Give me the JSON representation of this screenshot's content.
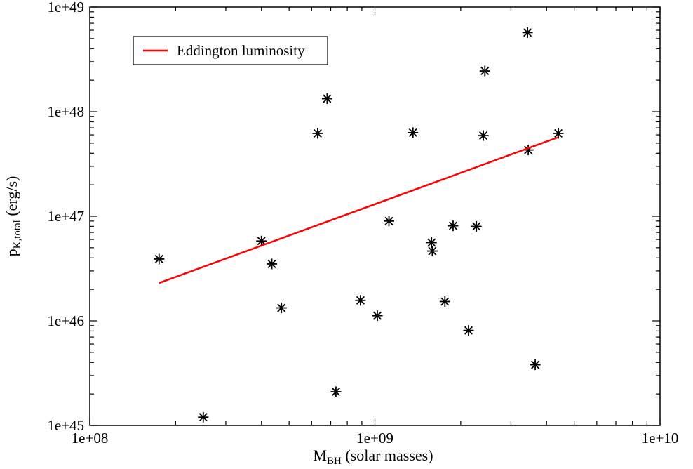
{
  "chart_data": {
    "type": "scatter",
    "title": "",
    "x_scale": "log",
    "y_scale": "log",
    "xlim": [
      100000000.0,
      10000000000.0
    ],
    "ylim": [
      1e+45,
      1e+49
    ],
    "x_tick_labels": [
      "1e+08",
      "1e+09",
      "1e+10"
    ],
    "y_tick_labels": [
      "1e+45",
      "1e+46",
      "1e+47",
      "1e+48",
      "1e+49"
    ],
    "xlabel": {
      "main": "M",
      "sub": "BH",
      "rest": " (solar masses)"
    },
    "ylabel": {
      "main": "p",
      "sub": "K,total",
      "rest": " (erg/s)"
    },
    "grid": false,
    "legend": {
      "placement": "top-left"
    },
    "series": [
      {
        "name": "",
        "kind": "scatter",
        "marker": "asterisk",
        "color": "#000000",
        "points": [
          {
            "x": 175000000.0,
            "y": 3.9e+46
          },
          {
            "x": 250000000.0,
            "y": 1.2e+45
          },
          {
            "x": 400000000.0,
            "y": 5.8e+46
          },
          {
            "x": 435000000.0,
            "y": 3.5e+46
          },
          {
            "x": 470000000.0,
            "y": 1.33e+46
          },
          {
            "x": 630000000.0,
            "y": 6.2e+47
          },
          {
            "x": 680000000.0,
            "y": 1.33e+48
          },
          {
            "x": 730000000.0,
            "y": 2.1e+45
          },
          {
            "x": 890000000.0,
            "y": 1.57e+46
          },
          {
            "x": 1020000000.0,
            "y": 1.12e+46
          },
          {
            "x": 1120000000.0,
            "y": 9e+46
          },
          {
            "x": 1360000000.0,
            "y": 6.3e+47
          },
          {
            "x": 1580000000.0,
            "y": 5.6e+46
          },
          {
            "x": 1590000000.0,
            "y": 4.65e+46
          },
          {
            "x": 1760000000.0,
            "y": 1.53e+46
          },
          {
            "x": 1880000000.0,
            "y": 8.1e+46
          },
          {
            "x": 2130000000.0,
            "y": 8.1e+45
          },
          {
            "x": 2270000000.0,
            "y": 8e+46
          },
          {
            "x": 2400000000.0,
            "y": 5.9e+47
          },
          {
            "x": 2430000000.0,
            "y": 2.45e+48
          },
          {
            "x": 3430000000.0,
            "y": 5.7e+48
          },
          {
            "x": 3450000000.0,
            "y": 4.3e+47
          },
          {
            "x": 3650000000.0,
            "y": 3.8e+45
          },
          {
            "x": 4400000000.0,
            "y": 6.2e+47
          }
        ]
      },
      {
        "name": "Eddington luminosity",
        "kind": "line",
        "color": "#ff0000",
        "points": [
          {
            "x": 175000000.0,
            "y": 2.3e+46
          },
          {
            "x": 4400000000.0,
            "y": 5.7e+47
          }
        ]
      }
    ]
  }
}
